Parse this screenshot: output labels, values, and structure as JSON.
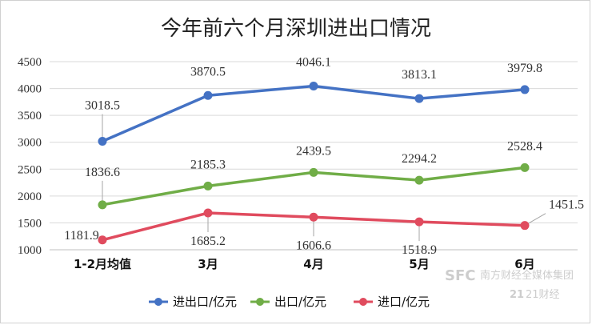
{
  "chart_data": {
    "type": "line",
    "title": "今年前六个月深圳进出口情况",
    "categories": [
      "1-2月均值",
      "3月",
      "4月",
      "5月",
      "6月"
    ],
    "ylim": [
      1000,
      4500
    ],
    "yticks": [
      1000,
      1500,
      2000,
      2500,
      3000,
      3500,
      4000,
      4500
    ],
    "ytick_labels": [
      "1000",
      "1500",
      "2000",
      "2500",
      "3000",
      "3500",
      "4000",
      "4500"
    ],
    "grid": true,
    "legend_position": "bottom",
    "series": [
      {
        "name": "进出口/亿元",
        "color": "#4472C4",
        "values": [
          3018.5,
          3870.5,
          4046.1,
          3813.1,
          3979.8
        ],
        "labels": [
          "3018.5",
          "3870.5",
          "4046.1",
          "3813.1",
          "3979.8"
        ]
      },
      {
        "name": "出口/亿元",
        "color": "#70AD47",
        "values": [
          1836.6,
          2185.3,
          2439.5,
          2294.2,
          2528.4
        ],
        "labels": [
          "1836.6",
          "2185.3",
          "2439.5",
          "2294.2",
          "2528.4"
        ]
      },
      {
        "name": "进口/亿元",
        "color": "#E04B5E",
        "values": [
          1181.9,
          1685.2,
          1606.6,
          1518.9,
          1451.5
        ],
        "labels": [
          "1181.9",
          "1685.2",
          "1606.6",
          "1518.9",
          "1451.5"
        ]
      }
    ]
  },
  "watermark": {
    "brand_1": "SFC",
    "brand_1_text": "南方财经全媒体集团",
    "brand_2": "21",
    "brand_2_text": "21财经"
  }
}
